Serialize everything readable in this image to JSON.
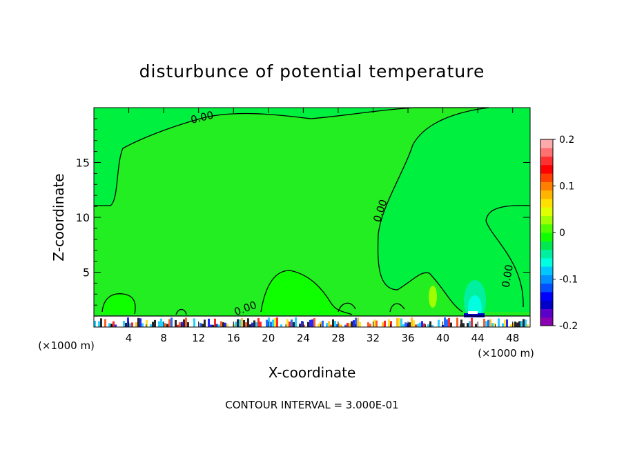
{
  "chart_data": {
    "type": "heatmap",
    "title": "disturbunce of potential temperature",
    "xlabel": "X-coordinate",
    "ylabel": "Z-coordinate",
    "x_unit_left": "(×1000 m)",
    "x_unit_right": "(×1000 m)",
    "xlim": [
      0,
      50
    ],
    "ylim": [
      0,
      20
    ],
    "x_ticks": [
      4,
      8,
      12,
      16,
      20,
      24,
      28,
      32,
      36,
      40,
      44,
      48
    ],
    "y_ticks": [
      5,
      10,
      15
    ],
    "footer": "CONTOUR INTERVAL = 3.000E-01",
    "contour_labels": [
      {
        "text": "0.00",
        "x": 12.5,
        "y": 18.8
      },
      {
        "text": "0.00",
        "x": 33.2,
        "y": 10.5
      },
      {
        "text": "0.00",
        "x": 47.8,
        "y": 4.6
      },
      {
        "text": "0.00",
        "x": 17.5,
        "y": 1.4
      }
    ],
    "colorbar": {
      "ticks": [
        {
          "label": "0.2",
          "value": 0.2
        },
        {
          "label": "0.1",
          "value": 0.1
        },
        {
          "label": "0",
          "value": 0
        },
        {
          "label": "-0.1",
          "value": -0.1
        },
        {
          "label": "-0.2",
          "value": -0.2
        }
      ],
      "colors": [
        "#8b00b0",
        "#5a00c8",
        "#0000c8",
        "#0000ff",
        "#0050ff",
        "#0090ff",
        "#00c8ff",
        "#00ffe0",
        "#00f0a0",
        "#00e850",
        "#10ff00",
        "#50ff00",
        "#a0ff00",
        "#e0ff00",
        "#ffe000",
        "#ffb400",
        "#ff8000",
        "#ff4000",
        "#ff0000",
        "#ff3030",
        "#ff7070",
        "#ffaaaa"
      ]
    },
    "colors": {
      "background": "#22ee22"
    }
  }
}
